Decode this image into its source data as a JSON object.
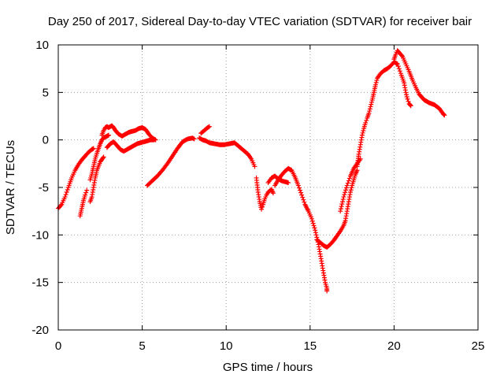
{
  "chart_data": {
    "type": "scatter",
    "title": "Day 250 of 2017, Sidereal Day-to-day VTEC variation (SDTVAR) for receiver bair",
    "xlabel": "GPS time / hours",
    "ylabel": "SDTVAR / TECUs",
    "xlim": [
      0,
      25
    ],
    "ylim": [
      -20,
      10
    ],
    "xticks": [
      0,
      5,
      10,
      15,
      20,
      25
    ],
    "yticks": [
      -20,
      -15,
      -10,
      -5,
      0,
      5,
      10
    ],
    "grid": true,
    "marker": "plus",
    "series": [
      {
        "color": "#ff0000",
        "segments": [
          [
            [
              0.0,
              -7.2
            ],
            [
              0.2,
              -6.8
            ],
            [
              0.4,
              -6.0
            ],
            [
              0.6,
              -5.0
            ],
            [
              0.8,
              -4.0
            ],
            [
              1.0,
              -3.2
            ],
            [
              1.2,
              -2.6
            ],
            [
              1.4,
              -2.1
            ],
            [
              1.6,
              -1.7
            ],
            [
              1.8,
              -1.3
            ],
            [
              2.0,
              -1.0
            ],
            [
              2.1,
              -0.9
            ]
          ],
          [
            [
              1.3,
              -8.0
            ],
            [
              1.4,
              -7.2
            ],
            [
              1.5,
              -6.4
            ],
            [
              1.6,
              -5.8
            ],
            [
              1.7,
              -5.3
            ]
          ],
          [
            [
              1.9,
              -6.5
            ],
            [
              2.0,
              -6.0
            ],
            [
              2.1,
              -5.0
            ],
            [
              2.2,
              -4.0
            ],
            [
              2.3,
              -3.2
            ],
            [
              2.5,
              -2.3
            ],
            [
              2.7,
              -1.8
            ]
          ],
          [
            [
              1.9,
              -4.2
            ],
            [
              2.0,
              -3.6
            ],
            [
              2.1,
              -2.8
            ],
            [
              2.2,
              -2.0
            ],
            [
              2.3,
              -1.4
            ],
            [
              2.4,
              -0.9
            ],
            [
              2.5,
              -0.4
            ],
            [
              2.6,
              0.0
            ],
            [
              2.7,
              0.2
            ],
            [
              2.8,
              0.3
            ],
            [
              2.9,
              0.4
            ],
            [
              3.0,
              0.5
            ]
          ],
          [
            [
              2.6,
              0.5
            ],
            [
              2.7,
              1.0
            ],
            [
              2.8,
              1.3
            ],
            [
              2.9,
              1.4
            ],
            [
              3.0,
              1.3
            ],
            [
              3.1,
              1.4
            ],
            [
              3.2,
              1.5
            ],
            [
              3.3,
              1.3
            ],
            [
              3.4,
              1.0
            ],
            [
              3.5,
              0.8
            ],
            [
              3.6,
              0.6
            ],
            [
              3.8,
              0.4
            ],
            [
              4.0,
              0.6
            ],
            [
              4.2,
              0.8
            ],
            [
              4.4,
              0.9
            ],
            [
              4.6,
              1.0
            ],
            [
              4.8,
              1.2
            ],
            [
              5.0,
              1.3
            ],
            [
              5.2,
              1.1
            ],
            [
              5.4,
              0.6
            ],
            [
              5.6,
              0.2
            ],
            [
              5.8,
              0.0
            ]
          ],
          [
            [
              2.9,
              -0.8
            ],
            [
              3.1,
              -0.4
            ],
            [
              3.3,
              -0.2
            ],
            [
              3.5,
              -0.6
            ],
            [
              3.7,
              -1.0
            ],
            [
              3.9,
              -1.2
            ],
            [
              4.1,
              -1.0
            ],
            [
              4.3,
              -0.8
            ],
            [
              4.5,
              -0.6
            ],
            [
              4.7,
              -0.4
            ],
            [
              4.9,
              -0.3
            ],
            [
              5.1,
              -0.2
            ],
            [
              5.3,
              -0.1
            ],
            [
              5.5,
              0.0
            ],
            [
              5.7,
              0.0
            ]
          ],
          [
            [
              5.3,
              -4.8
            ],
            [
              5.6,
              -4.3
            ],
            [
              5.9,
              -3.8
            ],
            [
              6.2,
              -3.2
            ],
            [
              6.5,
              -2.5
            ],
            [
              6.8,
              -1.7
            ],
            [
              7.1,
              -0.9
            ],
            [
              7.4,
              -0.2
            ],
            [
              7.7,
              0.1
            ],
            [
              8.0,
              0.2
            ],
            [
              8.1,
              0.1
            ]
          ],
          [
            [
              8.5,
              0.7
            ],
            [
              8.7,
              1.0
            ],
            [
              8.9,
              1.3
            ],
            [
              9.0,
              1.4
            ]
          ],
          [
            [
              8.4,
              0.2
            ],
            [
              8.6,
              0.0
            ],
            [
              8.8,
              -0.1
            ],
            [
              9.0,
              -0.3
            ],
            [
              9.3,
              -0.4
            ],
            [
              9.6,
              -0.5
            ],
            [
              9.9,
              -0.5
            ],
            [
              10.2,
              -0.4
            ],
            [
              10.5,
              -0.3
            ],
            [
              10.7,
              -0.6
            ],
            [
              10.9,
              -0.9
            ],
            [
              11.1,
              -1.2
            ],
            [
              11.3,
              -1.5
            ],
            [
              11.5,
              -2.0
            ],
            [
              11.7,
              -2.8
            ]
          ],
          [
            [
              11.8,
              -4.0
            ],
            [
              11.9,
              -5.5
            ],
            [
              12.0,
              -6.5
            ],
            [
              12.1,
              -7.3
            ],
            [
              12.2,
              -6.8
            ],
            [
              12.3,
              -6.2
            ],
            [
              12.4,
              -5.8
            ],
            [
              12.5,
              -5.5
            ],
            [
              12.7,
              -5.2
            ],
            [
              12.8,
              -5.6
            ]
          ],
          [
            [
              12.5,
              -4.5
            ],
            [
              12.7,
              -4.0
            ],
            [
              12.9,
              -3.8
            ],
            [
              13.1,
              -4.1
            ],
            [
              13.3,
              -4.3
            ],
            [
              13.5,
              -4.4
            ],
            [
              13.7,
              -4.5
            ]
          ],
          [
            [
              12.9,
              -4.8
            ],
            [
              13.1,
              -4.2
            ],
            [
              13.3,
              -3.7
            ],
            [
              13.5,
              -3.3
            ],
            [
              13.7,
              -3.0
            ],
            [
              13.9,
              -3.2
            ],
            [
              14.1,
              -3.9
            ],
            [
              14.3,
              -4.8
            ],
            [
              14.5,
              -5.8
            ],
            [
              14.7,
              -6.8
            ],
            [
              14.9,
              -7.5
            ],
            [
              15.1,
              -8.3
            ],
            [
              15.3,
              -9.5
            ],
            [
              15.5,
              -11.0
            ],
            [
              15.6,
              -12.0
            ],
            [
              15.7,
              -13.0
            ],
            [
              15.8,
              -14.0
            ],
            [
              15.9,
              -15.0
            ],
            [
              16.0,
              -15.6
            ],
            [
              16.0,
              -15.9
            ]
          ],
          [
            [
              15.4,
              -10.5
            ],
            [
              15.6,
              -10.8
            ],
            [
              15.8,
              -11.1
            ],
            [
              16.0,
              -11.3
            ],
            [
              16.2,
              -11.0
            ],
            [
              16.4,
              -10.6
            ],
            [
              16.6,
              -10.1
            ],
            [
              16.8,
              -9.6
            ],
            [
              17.0,
              -9.0
            ],
            [
              17.1,
              -8.5
            ],
            [
              17.2,
              -7.5
            ],
            [
              17.3,
              -6.5
            ],
            [
              17.4,
              -5.5
            ],
            [
              17.5,
              -4.8
            ],
            [
              17.6,
              -4.2
            ],
            [
              17.7,
              -3.6
            ],
            [
              17.8,
              -3.2
            ]
          ],
          [
            [
              16.8,
              -7.5
            ],
            [
              17.0,
              -6.0
            ],
            [
              17.2,
              -4.8
            ],
            [
              17.4,
              -3.8
            ],
            [
              17.6,
              -3.0
            ],
            [
              17.8,
              -2.5
            ],
            [
              18.0,
              -2.0
            ]
          ],
          [
            [
              17.8,
              -2.8
            ],
            [
              17.9,
              -1.5
            ],
            [
              18.0,
              -0.5
            ],
            [
              18.1,
              0.5
            ],
            [
              18.2,
              1.2
            ],
            [
              18.3,
              1.8
            ],
            [
              18.4,
              2.3
            ],
            [
              18.5,
              2.8
            ],
            [
              18.6,
              3.5
            ],
            [
              18.7,
              4.2
            ],
            [
              18.8,
              5.0
            ],
            [
              18.9,
              5.8
            ],
            [
              19.0,
              6.5
            ],
            [
              19.2,
              7.0
            ],
            [
              19.4,
              7.3
            ],
            [
              19.6,
              7.5
            ],
            [
              19.8,
              7.8
            ],
            [
              20.0,
              8.2
            ],
            [
              20.2,
              8.0
            ],
            [
              20.4,
              7.0
            ],
            [
              20.6,
              6.0
            ],
            [
              20.7,
              5.0
            ],
            [
              20.8,
              4.3
            ],
            [
              20.9,
              3.8
            ],
            [
              21.0,
              3.6
            ]
          ],
          [
            [
              20.0,
              8.5
            ],
            [
              20.1,
              9.0
            ],
            [
              20.2,
              9.4
            ],
            [
              20.3,
              9.2
            ],
            [
              20.5,
              8.8
            ],
            [
              20.7,
              8.0
            ],
            [
              20.9,
              7.2
            ],
            [
              21.1,
              6.3
            ],
            [
              21.3,
              5.5
            ],
            [
              21.5,
              4.8
            ],
            [
              21.8,
              4.2
            ],
            [
              22.1,
              3.9
            ],
            [
              22.4,
              3.7
            ],
            [
              22.7,
              3.3
            ],
            [
              22.9,
              2.8
            ],
            [
              23.0,
              2.6
            ]
          ]
        ]
      }
    ]
  }
}
